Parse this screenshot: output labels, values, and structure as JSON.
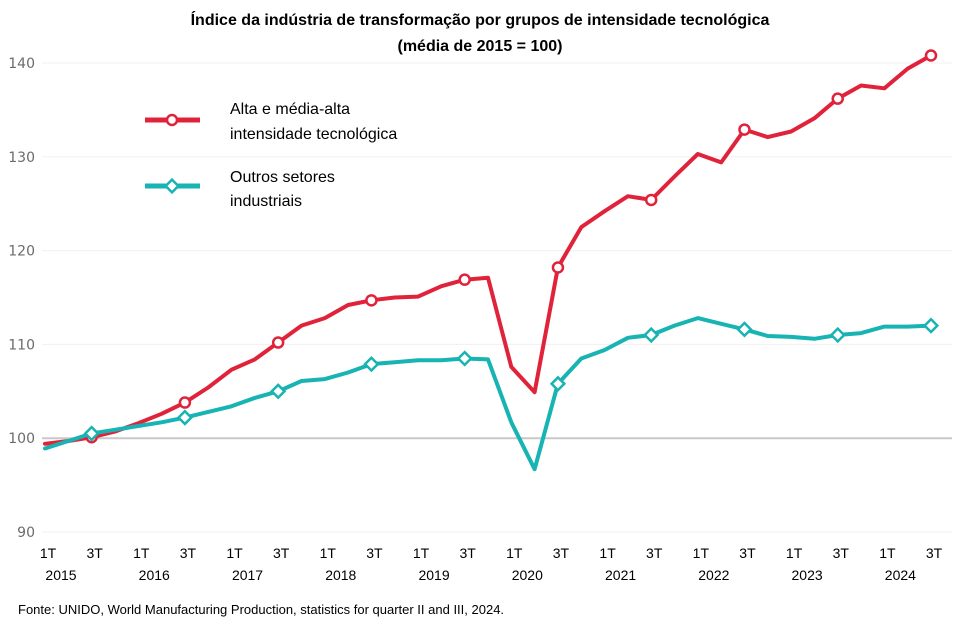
{
  "chart_data": {
    "type": "line",
    "title": "Índice da indústria  de transformação  por grupos  de intensidade  tecnológica",
    "subtitle": "(média de 2015 = 100)",
    "xlabel": "",
    "ylabel": "",
    "ylim": [
      90,
      140
    ],
    "yticks": [
      90,
      100,
      110,
      120,
      130,
      140
    ],
    "ytick_labels": [
      "90",
      "100",
      "110",
      "120",
      "130",
      "140"
    ],
    "grid": true,
    "reference_line": 100,
    "legend_position": "top-left",
    "x": [
      "1T 2015",
      "2T 2015",
      "3T 2015",
      "4T 2015",
      "1T 2016",
      "2T 2016",
      "3T 2016",
      "4T 2016",
      "1T 2017",
      "2T 2017",
      "3T 2017",
      "4T 2017",
      "1T 2018",
      "2T 2018",
      "3T 2018",
      "4T 2018",
      "1T 2019",
      "2T 2019",
      "3T 2019",
      "4T 2019",
      "1T 2020",
      "2T 2020",
      "3T 2020",
      "4T 2020",
      "1T 2021",
      "2T 2021",
      "3T 2021",
      "4T 2021",
      "1T 2022",
      "2T 2022",
      "3T 2022",
      "4T 2022",
      "1T 2023",
      "2T 2023",
      "3T 2023",
      "4T 2023",
      "1T 2024",
      "2T 2024",
      "3T 2024"
    ],
    "xtick_quarter_labels": [
      {
        "index": 0,
        "label": "1T"
      },
      {
        "index": 2,
        "label": "3T"
      },
      {
        "index": 4,
        "label": "1T"
      },
      {
        "index": 6,
        "label": "3T"
      },
      {
        "index": 8,
        "label": "1T"
      },
      {
        "index": 10,
        "label": "3T"
      },
      {
        "index": 12,
        "label": "1T"
      },
      {
        "index": 14,
        "label": "3T"
      },
      {
        "index": 16,
        "label": "1T"
      },
      {
        "index": 18,
        "label": "3T"
      },
      {
        "index": 20,
        "label": "1T"
      },
      {
        "index": 22,
        "label": "3T"
      },
      {
        "index": 24,
        "label": "1T"
      },
      {
        "index": 26,
        "label": "3T"
      },
      {
        "index": 28,
        "label": "1T"
      },
      {
        "index": 30,
        "label": "3T"
      },
      {
        "index": 32,
        "label": "1T"
      },
      {
        "index": 34,
        "label": "3T"
      },
      {
        "index": 36,
        "label": "1T"
      },
      {
        "index": 38,
        "label": "3T"
      }
    ],
    "xtick_year_labels": [
      {
        "index": 0,
        "label": "2015"
      },
      {
        "index": 4,
        "label": "2016"
      },
      {
        "index": 8,
        "label": "2017"
      },
      {
        "index": 12,
        "label": "2018"
      },
      {
        "index": 16,
        "label": "2019"
      },
      {
        "index": 20,
        "label": "2020"
      },
      {
        "index": 24,
        "label": "2021"
      },
      {
        "index": 28,
        "label": "2022"
      },
      {
        "index": 32,
        "label": "2023"
      },
      {
        "index": 36,
        "label": "2024"
      }
    ],
    "series": [
      {
        "name": "Alta e média-alta intensidade tecnológica",
        "legend_lines": [
          "Alta e média-alta",
          "intensidade tecnológica"
        ],
        "color": "#e0233b",
        "marker": "circle",
        "marker_every": 4,
        "marker_offset": 2,
        "values": [
          99.4,
          99.7,
          100.1,
          100.7,
          101.6,
          102.6,
          103.8,
          105.4,
          107.3,
          108.4,
          110.2,
          112.0,
          112.8,
          114.2,
          114.7,
          115.0,
          115.1,
          116.2,
          116.9,
          117.1,
          107.6,
          104.9,
          118.2,
          122.5,
          124.2,
          125.8,
          125.4,
          127.9,
          130.3,
          129.4,
          132.9,
          132.1,
          132.7,
          134.1,
          136.2,
          137.6,
          137.3,
          139.4,
          140.8
        ]
      },
      {
        "name": "Outros setores industriais",
        "legend_lines": [
          "Outros setores",
          "industriais"
        ],
        "color": "#18b3b3",
        "marker": "diamond",
        "marker_every": 4,
        "marker_offset": 2,
        "values": [
          98.9,
          99.7,
          100.5,
          100.9,
          101.3,
          101.7,
          102.2,
          102.8,
          103.4,
          104.3,
          105.0,
          106.1,
          106.3,
          107.0,
          107.9,
          108.1,
          108.3,
          108.3,
          108.5,
          108.4,
          101.7,
          96.7,
          105.8,
          108.5,
          109.4,
          110.7,
          111.0,
          112.0,
          112.8,
          112.2,
          111.6,
          110.9,
          110.8,
          110.6,
          111.0,
          111.2,
          111.9,
          111.9,
          112.0
        ]
      }
    ]
  },
  "source_note": "Fonte: UNIDO, World Manufacturing Production, statistics for quarter II and III, 2024."
}
